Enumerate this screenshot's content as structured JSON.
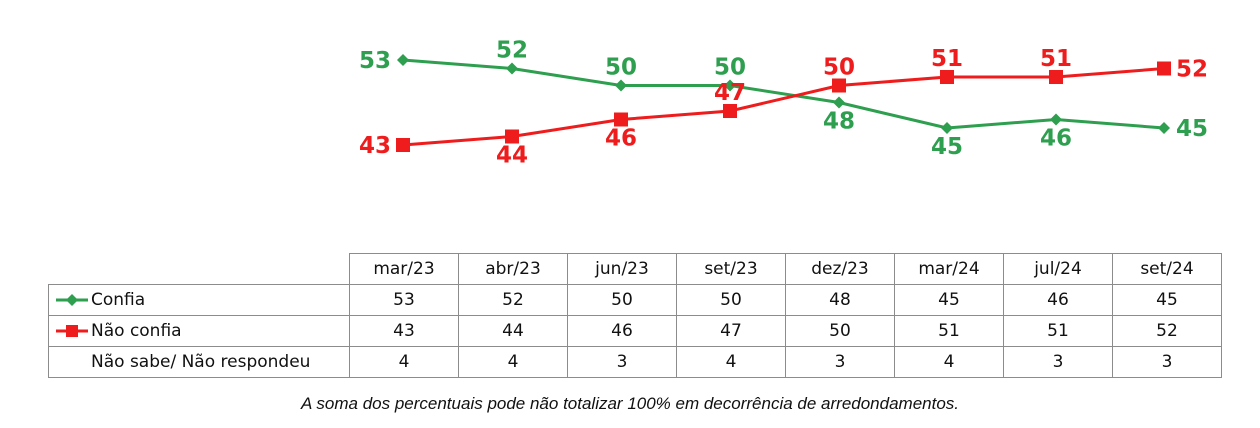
{
  "chart_data": {
    "type": "line",
    "categories": [
      "mar/23",
      "abr/23",
      "jun/23",
      "set/23",
      "dez/23",
      "mar/24",
      "jul/24",
      "set/24"
    ],
    "series": [
      {
        "name": "Confia",
        "color": "#2e9e4f",
        "marker": "diamond",
        "values": [
          53,
          52,
          50,
          50,
          48,
          45,
          46,
          45
        ]
      },
      {
        "name": "Não confia",
        "color": "#ee1c1c",
        "marker": "square",
        "values": [
          43,
          44,
          46,
          47,
          50,
          51,
          51,
          52
        ]
      }
    ],
    "extra_rows": [
      {
        "name": "Não sabe/ Não respondeu",
        "values": [
          4,
          4,
          3,
          4,
          3,
          4,
          3,
          3
        ]
      }
    ],
    "title": "",
    "xlabel": "",
    "ylabel": "",
    "grid": false,
    "legend": "table-left"
  },
  "footnote": "A soma dos percentuais pode não totalizar 100% em decorrência de arredondamentos."
}
